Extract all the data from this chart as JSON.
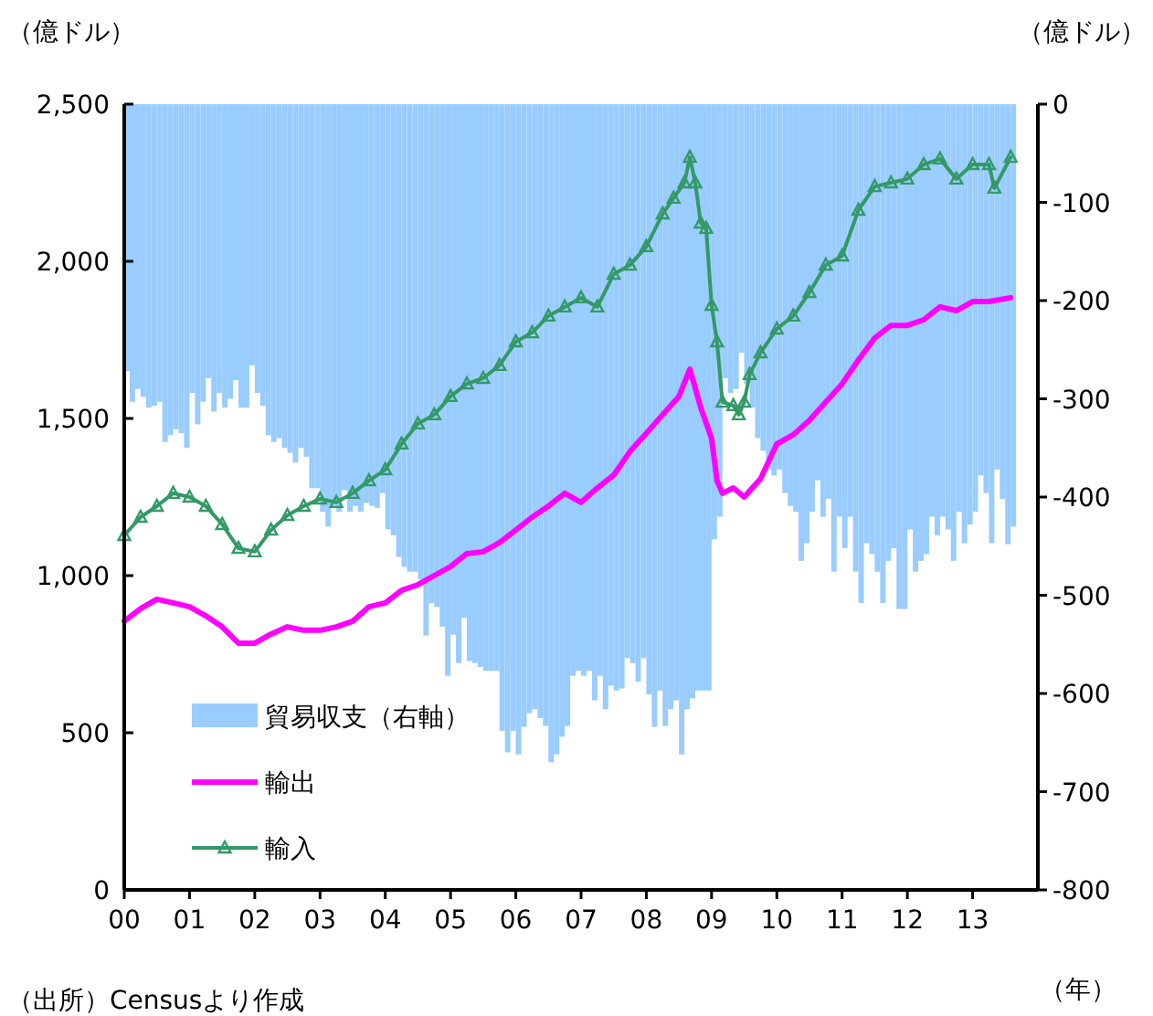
{
  "chart_data": {
    "type": "line",
    "ylabel": "（億ドル）",
    "y2label": "（億ドル）",
    "xlabel": "（年）",
    "annotations": [
      "（出所）Censusより作成"
    ],
    "xlim": [
      "2000-01",
      "2014-01"
    ],
    "xticks": [
      {
        "value": "2000",
        "label": "00"
      },
      {
        "value": "2001",
        "label": "01"
      },
      {
        "value": "2002",
        "label": "02"
      },
      {
        "value": "2003",
        "label": "03"
      },
      {
        "value": "2004",
        "label": "04"
      },
      {
        "value": "2005",
        "label": "05"
      },
      {
        "value": "2006",
        "label": "06"
      },
      {
        "value": "2007",
        "label": "07"
      },
      {
        "value": "2008",
        "label": "08"
      },
      {
        "value": "2009",
        "label": "09"
      },
      {
        "value": "2010",
        "label": "10"
      },
      {
        "value": "2011",
        "label": "11"
      },
      {
        "value": "2012",
        "label": "12"
      },
      {
        "value": "2013",
        "label": "13"
      }
    ],
    "ylim": [
      0,
      2500
    ],
    "yticks": [
      0,
      500,
      {
        "value": 1000,
        "label": "1,000"
      },
      {
        "value": 1500,
        "label": "1,500"
      },
      {
        "value": 2000,
        "label": "2,000"
      },
      {
        "value": 2500,
        "label": "2,500"
      }
    ],
    "y2lim": [
      -800,
      0
    ],
    "y2ticks": [
      -800,
      -700,
      -600,
      -500,
      -400,
      -300,
      -200,
      -100,
      0
    ],
    "legend": "bottom left",
    "series": [
      {
        "name": "貿易収支（右軸）",
        "type": "bar",
        "axis": "y2",
        "color": "#99ccff",
        "x": [
          "2000-01",
          "2000-02",
          "2000-03",
          "2000-04",
          "2000-05",
          "2000-06",
          "2000-07",
          "2000-08",
          "2000-09",
          "2000-10",
          "2000-11",
          "2000-12",
          "2001-01",
          "2001-02",
          "2001-03",
          "2001-04",
          "2001-05",
          "2001-06",
          "2001-07",
          "2001-08",
          "2001-09",
          "2001-10",
          "2001-11",
          "2001-12",
          "2002-01",
          "2002-02",
          "2002-03",
          "2002-04",
          "2002-05",
          "2002-06",
          "2002-07",
          "2002-08",
          "2002-09",
          "2002-10",
          "2002-11",
          "2002-12",
          "2003-01",
          "2003-02",
          "2003-03",
          "2003-04",
          "2003-05",
          "2003-06",
          "2003-07",
          "2003-08",
          "2003-09",
          "2003-10",
          "2003-11",
          "2003-12",
          "2004-01",
          "2004-02",
          "2004-03",
          "2004-04",
          "2004-05",
          "2004-06",
          "2004-07",
          "2004-08",
          "2004-09",
          "2004-10",
          "2004-11",
          "2004-12",
          "2005-01",
          "2005-02",
          "2005-03",
          "2005-04",
          "2005-05",
          "2005-06",
          "2005-07",
          "2005-08",
          "2005-09",
          "2005-10",
          "2005-11",
          "2005-12",
          "2006-01",
          "2006-02",
          "2006-03",
          "2006-04",
          "2006-05",
          "2006-06",
          "2006-07",
          "2006-08",
          "2006-09",
          "2006-10",
          "2006-11",
          "2006-12",
          "2007-01",
          "2007-02",
          "2007-03",
          "2007-04",
          "2007-05",
          "2007-06",
          "2007-07",
          "2007-08",
          "2007-09",
          "2007-10",
          "2007-11",
          "2007-12",
          "2008-01",
          "2008-02",
          "2008-03",
          "2008-04",
          "2008-05",
          "2008-06",
          "2008-07",
          "2008-08",
          "2008-09",
          "2008-10",
          "2008-11",
          "2008-12",
          "2009-01",
          "2009-02",
          "2009-03",
          "2009-04",
          "2009-05",
          "2009-06",
          "2009-07",
          "2009-08",
          "2009-09",
          "2009-10",
          "2009-11",
          "2009-12",
          "2010-01",
          "2010-02",
          "2010-03",
          "2010-04",
          "2010-05",
          "2010-06",
          "2010-07",
          "2010-08",
          "2010-09",
          "2010-10",
          "2010-11",
          "2010-12",
          "2011-01",
          "2011-02",
          "2011-03",
          "2011-04",
          "2011-05",
          "2011-06",
          "2011-07",
          "2011-08",
          "2011-09",
          "2011-10",
          "2011-11",
          "2011-12",
          "2012-01",
          "2012-02",
          "2012-03",
          "2012-04",
          "2012-05",
          "2012-06",
          "2012-07",
          "2012-08",
          "2012-09",
          "2012-10",
          "2012-11",
          "2012-12",
          "2013-01",
          "2013-02",
          "2013-03",
          "2013-04",
          "2013-05",
          "2013-06",
          "2013-07",
          "2013-08"
        ],
        "values": [
          -272,
          -303,
          -290,
          -298,
          -309,
          -307,
          -303,
          -344,
          -337,
          -331,
          -335,
          -350,
          -294,
          -326,
          -303,
          -279,
          -313,
          -294,
          -309,
          -300,
          -281,
          -309,
          -309,
          -266,
          -294,
          -307,
          -337,
          -344,
          -340,
          -350,
          -355,
          -365,
          -350,
          -359,
          -391,
          -391,
          -415,
          -430,
          -409,
          -415,
          -393,
          -415,
          -409,
          -415,
          -406,
          -409,
          -411,
          -396,
          -433,
          -439,
          -461,
          -471,
          -476,
          -476,
          -484,
          -541,
          -508,
          -512,
          -532,
          -582,
          -540,
          -569,
          -523,
          -567,
          -569,
          -573,
          -577,
          -577,
          -577,
          -638,
          -660,
          -638,
          -662,
          -634,
          -620,
          -616,
          -625,
          -633,
          -670,
          -662,
          -644,
          -633,
          -582,
          -577,
          -582,
          -577,
          -607,
          -582,
          -616,
          -592,
          -597,
          -595,
          -564,
          -569,
          -588,
          -564,
          -601,
          -634,
          -597,
          -633,
          -616,
          -607,
          -662,
          -616,
          -605,
          -597,
          -597,
          -597,
          -443,
          -420,
          -279,
          -294,
          -290,
          -253,
          -285,
          -309,
          -340,
          -353,
          -372,
          -378,
          -372,
          -396,
          -409,
          -415,
          -465,
          -447,
          -415,
          -383,
          -420,
          -402,
          -476,
          -420,
          -452,
          -420,
          -476,
          -508,
          -447,
          -458,
          -476,
          -508,
          -465,
          -452,
          -514,
          -514,
          -433,
          -476,
          -465,
          -458,
          -420,
          -439,
          -420,
          -433,
          -465,
          -415,
          -447,
          -428,
          -415,
          -378,
          -396,
          -447,
          -372,
          -402,
          -448,
          -430
        ]
      },
      {
        "name": "輸出",
        "color": "#ff00ff",
        "marker": "none",
        "x": [
          "2000-01",
          "2000-04",
          "2000-07",
          "2000-10",
          "2001-01",
          "2001-04",
          "2001-07",
          "2001-10",
          "2002-01",
          "2002-04",
          "2002-07",
          "2002-10",
          "2003-01",
          "2003-04",
          "2003-07",
          "2003-10",
          "2004-01",
          "2004-04",
          "2004-07",
          "2004-10",
          "2005-01",
          "2005-04",
          "2005-07",
          "2005-10",
          "2006-01",
          "2006-04",
          "2006-07",
          "2006-10",
          "2007-01",
          "2007-04",
          "2007-07",
          "2007-10",
          "2008-01",
          "2008-04",
          "2008-07",
          "2008-09",
          "2008-11",
          "2009-01",
          "2009-02",
          "2009-03",
          "2009-05",
          "2009-07",
          "2009-10",
          "2010-01",
          "2010-04",
          "2010-07",
          "2010-10",
          "2011-01",
          "2011-04",
          "2011-07",
          "2011-10",
          "2012-01",
          "2012-04",
          "2012-07",
          "2012-10",
          "2013-01",
          "2013-04",
          "2013-08"
        ],
        "values": [
          855,
          895,
          925,
          913,
          901,
          872,
          837,
          785,
          785,
          814,
          837,
          826,
          826,
          837,
          855,
          901,
          913,
          953,
          971,
          1000,
          1029,
          1070,
          1076,
          1105,
          1145,
          1186,
          1221,
          1262,
          1233,
          1279,
          1320,
          1395,
          1453,
          1512,
          1570,
          1657,
          1535,
          1436,
          1302,
          1262,
          1279,
          1250,
          1308,
          1419,
          1448,
          1494,
          1552,
          1610,
          1686,
          1756,
          1796,
          1796,
          1814,
          1855,
          1843,
          1872,
          1872,
          1884
        ]
      },
      {
        "name": "輸入",
        "color": "#339966",
        "marker": "triangle",
        "x": [
          "2000-01",
          "2000-04",
          "2000-07",
          "2000-10",
          "2001-01",
          "2001-04",
          "2001-07",
          "2001-10",
          "2002-01",
          "2002-04",
          "2002-07",
          "2002-10",
          "2003-01",
          "2003-04",
          "2003-07",
          "2003-10",
          "2004-01",
          "2004-04",
          "2004-07",
          "2004-10",
          "2005-01",
          "2005-04",
          "2005-07",
          "2005-10",
          "2006-01",
          "2006-04",
          "2006-07",
          "2006-10",
          "2007-01",
          "2007-04",
          "2007-07",
          "2007-10",
          "2008-01",
          "2008-04",
          "2008-06",
          "2008-08",
          "2008-09",
          "2008-10",
          "2008-11",
          "2008-12",
          "2009-01",
          "2009-02",
          "2009-03",
          "2009-05",
          "2009-06",
          "2009-07",
          "2009-08",
          "2009-10",
          "2010-01",
          "2010-04",
          "2010-07",
          "2010-10",
          "2011-01",
          "2011-04",
          "2011-07",
          "2011-10",
          "2012-01",
          "2012-04",
          "2012-07",
          "2012-10",
          "2013-01",
          "2013-04",
          "2013-05",
          "2013-08"
        ],
        "values": [
          1128,
          1186,
          1221,
          1262,
          1250,
          1221,
          1163,
          1087,
          1076,
          1145,
          1192,
          1221,
          1244,
          1233,
          1262,
          1302,
          1337,
          1419,
          1483,
          1512,
          1570,
          1610,
          1628,
          1669,
          1744,
          1773,
          1826,
          1855,
          1884,
          1855,
          1959,
          1988,
          2047,
          2151,
          2201,
          2250,
          2331,
          2250,
          2122,
          2105,
          1860,
          1744,
          1552,
          1541,
          1512,
          1552,
          1640,
          1709,
          1785,
          1826,
          1901,
          1988,
          2017,
          2163,
          2238,
          2250,
          2262,
          2308,
          2326,
          2262,
          2308,
          2308,
          2233,
          2331
        ]
      }
    ]
  }
}
